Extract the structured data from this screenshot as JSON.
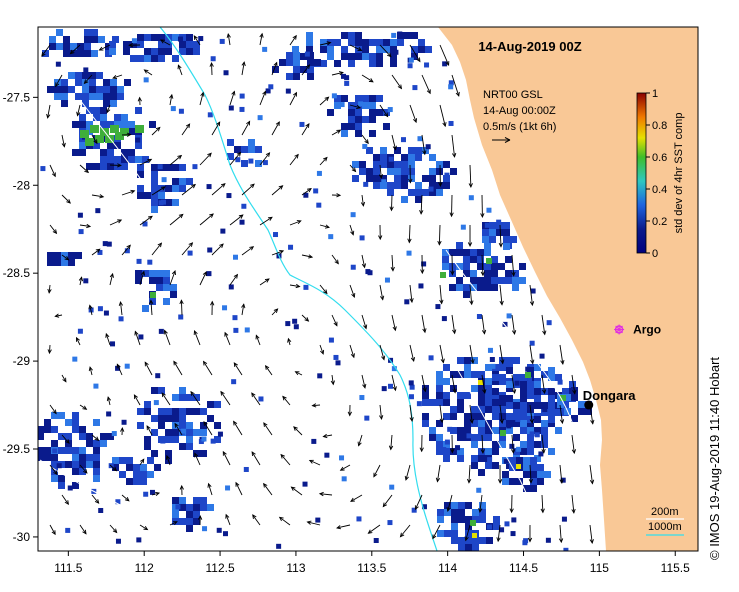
{
  "title": "14-Aug-2019 00Z",
  "colors": {
    "land": "#F9C896",
    "patch_dark": "#0A1B8C",
    "patch_mid": "#1E46C8",
    "patch_light": "#2E78E6",
    "patch_green": "#3FAE3A",
    "patch_yellow": "#E6E000",
    "contour": "#33DDEE",
    "vector": "#000000",
    "argo": "#E030E0"
  },
  "axes": {
    "x_ticks": [
      "111.5",
      "112",
      "112.5",
      "113",
      "113.5",
      "114",
      "114.5",
      "115",
      "115.5"
    ],
    "x_values": [
      111.5,
      112,
      112.5,
      113,
      113.5,
      114,
      114.5,
      115,
      115.5
    ],
    "y_ticks": [
      "-27.5",
      "-28",
      "-28.5",
      "-29",
      "-29.5",
      "-30"
    ],
    "y_values": [
      -27.5,
      -28,
      -28.5,
      -29,
      -29.5,
      -30
    ],
    "xlim": [
      111.3,
      115.65
    ],
    "ylim": [
      -30.08,
      -27.1
    ]
  },
  "info_box": {
    "line1": "NRT00 GSL",
    "line2": "14-Aug 00:00Z",
    "line3": "0.5m/s (1kt 6h)"
  },
  "colorbar": {
    "label": "std dev of 4hr SST comp",
    "ticks": [
      "0",
      "0.2",
      "0.4",
      "0.6",
      "0.8",
      "1"
    ],
    "tick_values": [
      0,
      0.2,
      0.4,
      0.6,
      0.8,
      1
    ]
  },
  "places": {
    "argo": {
      "label": "Argo",
      "lon": 115.13,
      "lat": -28.82
    },
    "dongara": {
      "label": "Dongara",
      "lon": 114.93,
      "lat": -29.25
    }
  },
  "depth_legend": {
    "label_200": "200m",
    "label_1000": "1000m"
  },
  "credit": "© IMOS 19-Aug-2019 11:40 Hobart"
}
